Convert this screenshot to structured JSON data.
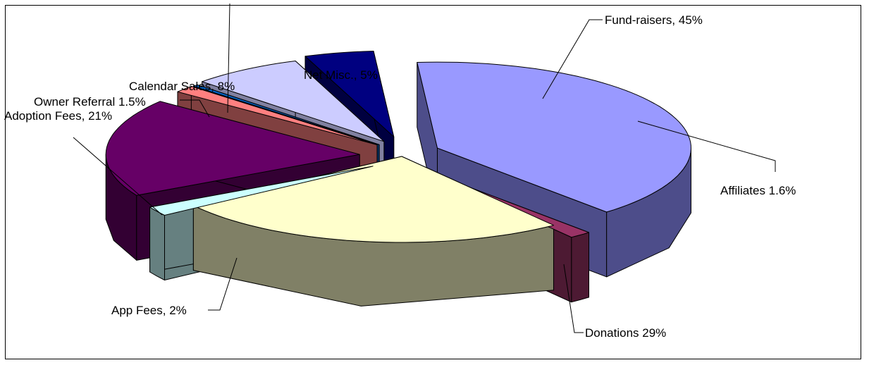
{
  "chart_data": {
    "type": "pie",
    "title": "",
    "three_d": true,
    "exploded": true,
    "legend": "none",
    "slices": [
      {
        "label": "Fund-raisers,  45%",
        "value": 45,
        "color_top": "#9999ff",
        "color_side": "#4d4d8a"
      },
      {
        "label": "Affiliates  1.6%",
        "value": 1.6,
        "color_top": "#993366",
        "color_side": "#4d1a33"
      },
      {
        "label": "Donations  29%",
        "value": 29,
        "color_top": "#ffffcc",
        "color_side": "#808066"
      },
      {
        "label": "App Fees,  2%",
        "value": 2,
        "color_top": "#ccffff",
        "color_side": "#668080"
      },
      {
        "label": "Adoption Fees,  21%",
        "value": 21,
        "color_top": "#660066",
        "color_side": "#330033"
      },
      {
        "label": "Owner Referral 1.5%",
        "value": 1.5,
        "color_top": "#ff8080",
        "color_side": "#804040"
      },
      {
        "label": "",
        "value": 0.4,
        "color_top": "#0066cc",
        "color_side": "#003366"
      },
      {
        "label": "Calendar Sales,  8%",
        "value": 8,
        "color_top": "#ccccff",
        "color_side": "#8080a0"
      },
      {
        "label": "Net Misc.,  5%",
        "value": 5,
        "color_top": "#000080",
        "color_side": "#000040"
      }
    ]
  }
}
